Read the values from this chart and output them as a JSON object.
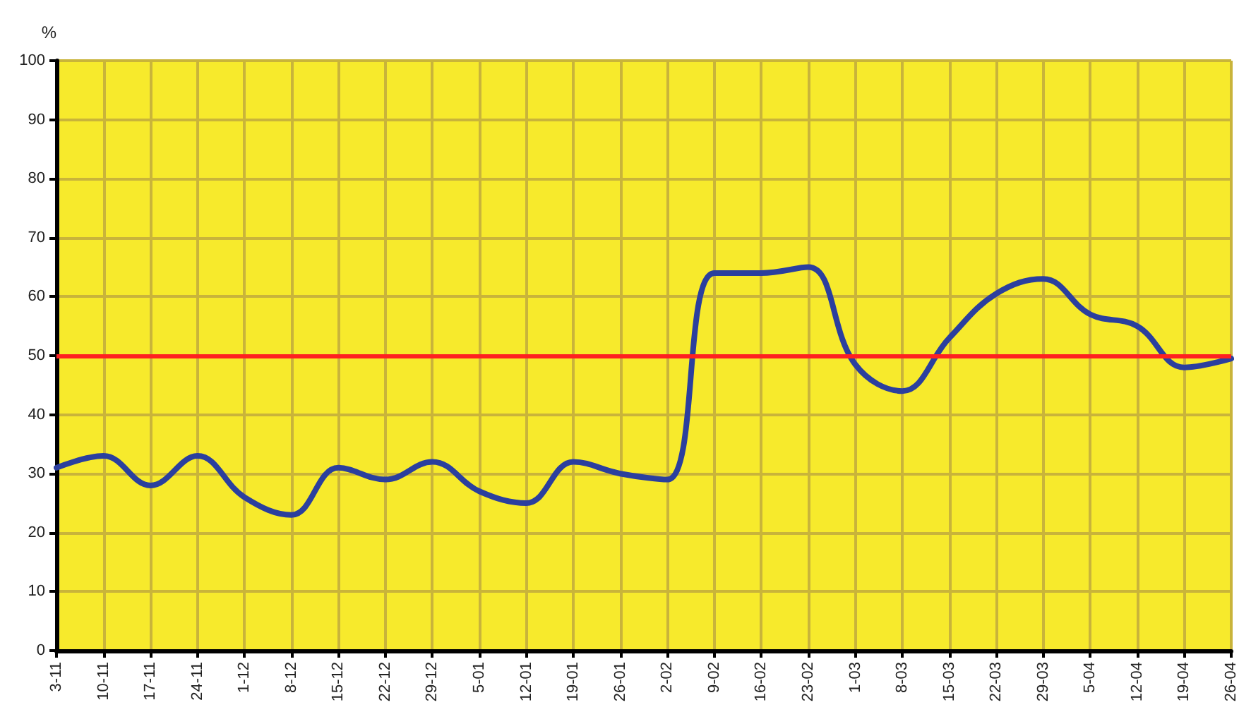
{
  "chart_data": {
    "type": "line",
    "ylabel": "%",
    "categories": [
      "3-11",
      "10-11",
      "17-11",
      "24-11",
      "1-12",
      "8-12",
      "15-12",
      "22-12",
      "29-12",
      "5-01",
      "12-01",
      "19-01",
      "26-01",
      "2-02",
      "9-02",
      "16-02",
      "23-02",
      "1-03",
      "8-03",
      "15-03",
      "22-03",
      "29-03",
      "5-04",
      "12-04",
      "19-04",
      "26-04"
    ],
    "series": [
      {
        "color": "#2b3f9e",
        "values": [
          31,
          33,
          28,
          33,
          26,
          23,
          31,
          29,
          32,
          27,
          25,
          32,
          30,
          29,
          64,
          64,
          65,
          48.5,
          44,
          53,
          60.5,
          63,
          57,
          55,
          48,
          49.5
        ]
      }
    ],
    "ylim": [
      0,
      100
    ],
    "yticks": [
      0,
      10,
      20,
      30,
      40,
      50,
      60,
      70,
      80,
      90,
      100
    ],
    "ref_lines": [
      {
        "axis": "y",
        "value": 50,
        "color": "#ff2020"
      }
    ],
    "grid": true,
    "marker": "none",
    "line_style": "solid"
  }
}
